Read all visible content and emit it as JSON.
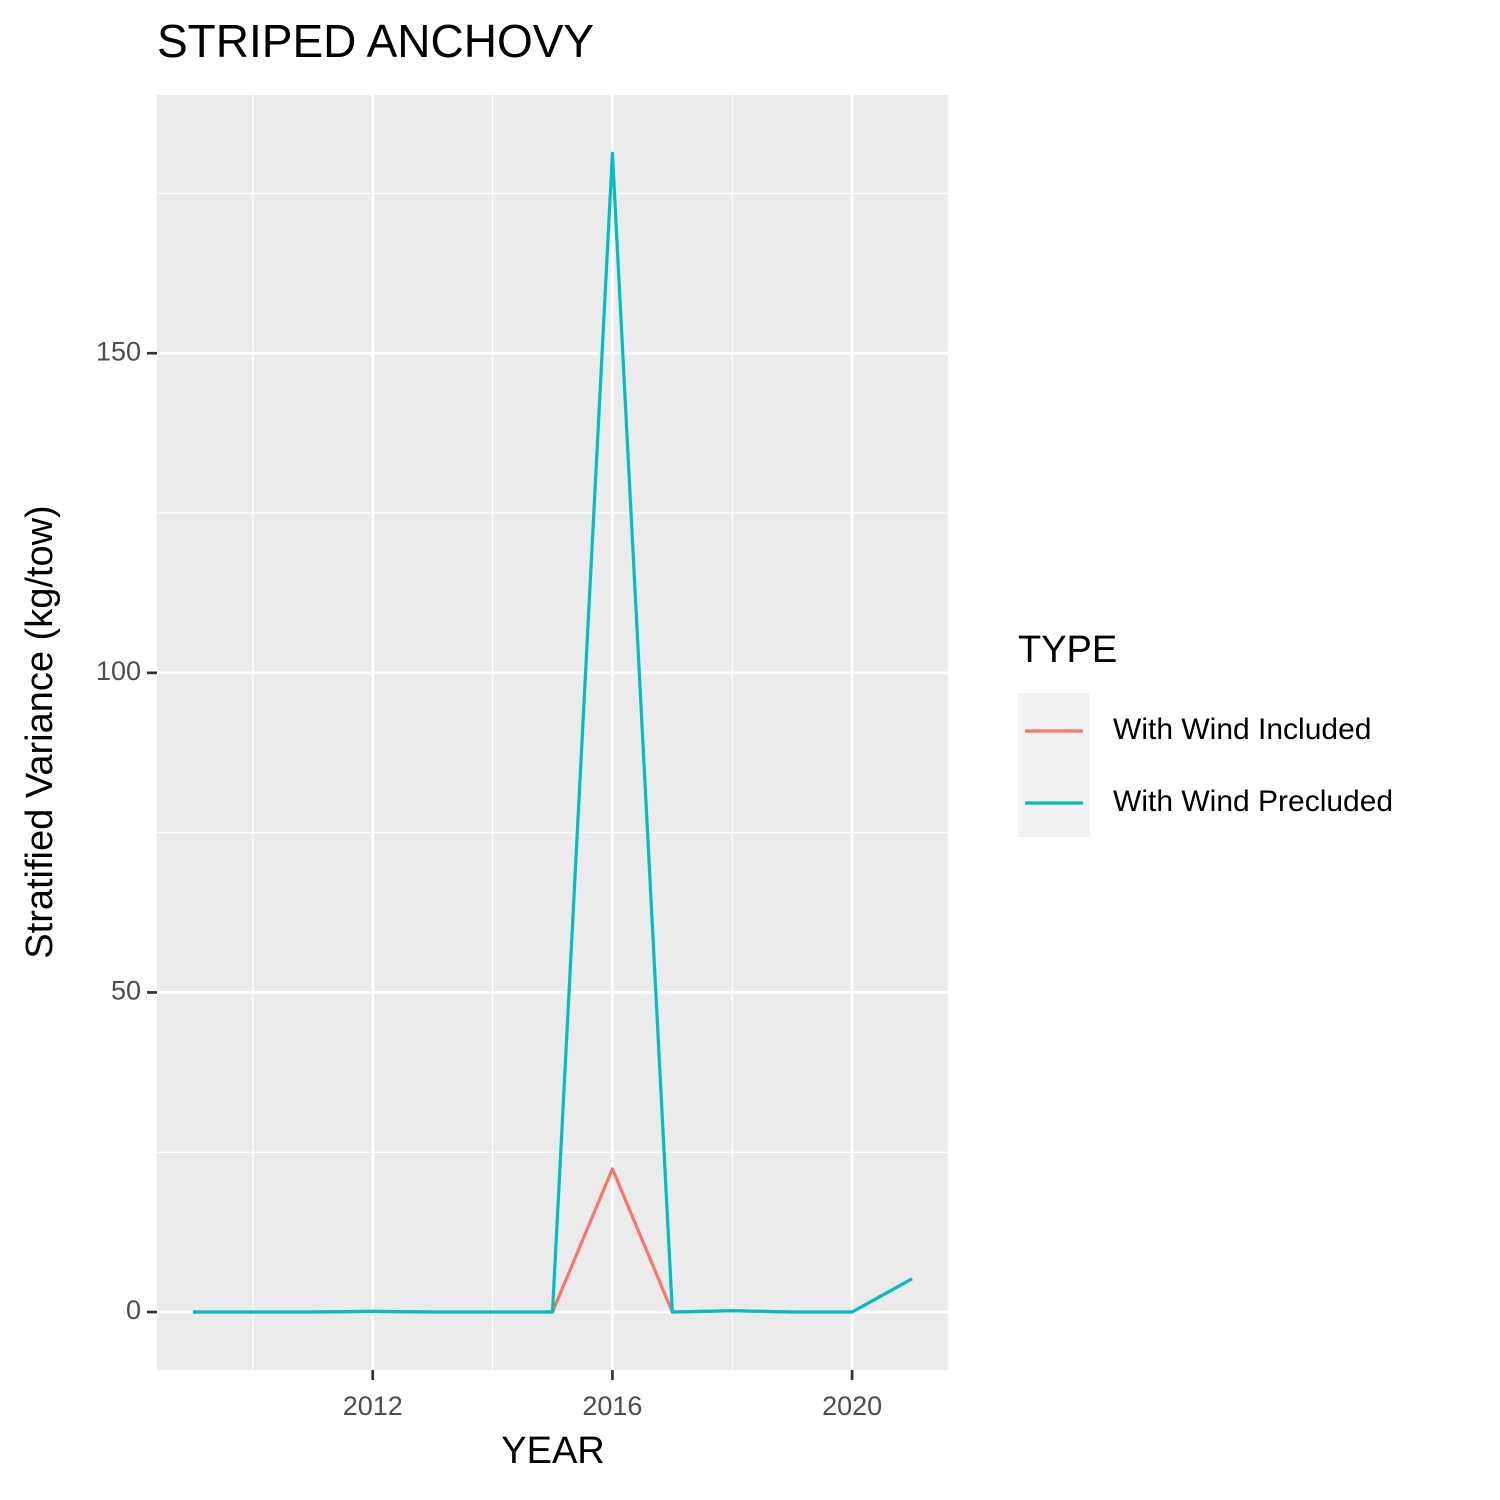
{
  "chart_data": {
    "type": "line",
    "title": "STRIPED ANCHOVY",
    "x_label": "YEAR",
    "y_label": "Stratified Variance (kg/tow)",
    "x": [
      2009,
      2010,
      2011,
      2012,
      2013,
      2014,
      2015,
      2016,
      2017,
      2018,
      2019,
      2020,
      2021
    ],
    "series": [
      {
        "name": "With Wind Included",
        "color": "#F8766D",
        "values": [
          0,
          0,
          0,
          0.1,
          0,
          0,
          0,
          22.4,
          0,
          0.2,
          0,
          0,
          5.2
        ]
      },
      {
        "name": "With Wind Precluded",
        "color": "#00BFC4",
        "values": [
          0,
          0,
          0,
          0.1,
          0,
          0,
          0,
          181.3,
          0,
          0.2,
          0,
          0,
          5.2
        ]
      }
    ],
    "xlim": [
      2008.4,
      2021.6
    ],
    "xticks": [
      2012,
      2016,
      2020
    ],
    "xminor": [
      2010,
      2014,
      2018
    ],
    "ylim": [
      -9.07,
      190.4
    ],
    "yticks": [
      0,
      50,
      100,
      150
    ],
    "yminor": [
      25,
      75,
      125,
      175
    ],
    "grid": true,
    "legend_title": "TYPE",
    "legend_position": "right"
  }
}
